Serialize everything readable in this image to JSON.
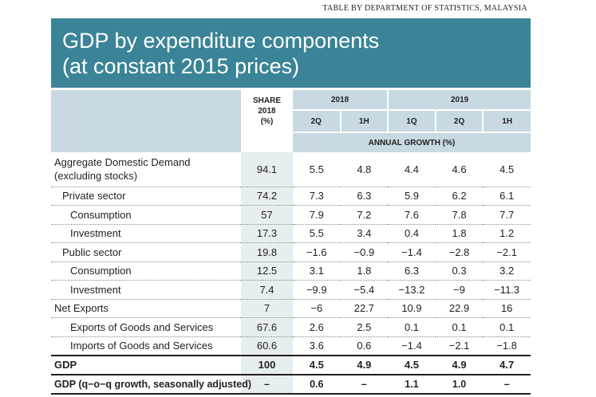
{
  "source": "TABLE BY DEPARTMENT OF STATISTICS, MALAYSIA",
  "title_line1": "GDP by expenditure components",
  "title_line2": "(at constant 2015 prices)",
  "header": {
    "share_l1": "SHARE",
    "share_l2": "2018",
    "share_l3": "(%)",
    "year_2018": "2018",
    "year_2019": "2019",
    "periods": [
      "2Q",
      "1H",
      "1Q",
      "2Q",
      "1H"
    ],
    "annual_growth": "ANNUAL GROWTH (%)"
  },
  "rows": [
    {
      "label1": "Aggregate Domestic Demand",
      "label2": "(excluding stocks)",
      "share": "94.1",
      "values": [
        "5.5",
        "4.8",
        "4.4",
        "4.6",
        "4.5"
      ]
    },
    {
      "label": "Private sector",
      "share": "74.2",
      "values": [
        "7.3",
        "6.3",
        "5.9",
        "6.2",
        "6.1"
      ]
    },
    {
      "label": "Consumption",
      "share": "57",
      "values": [
        "7.9",
        "7.2",
        "7.6",
        "7.8",
        "7.7"
      ]
    },
    {
      "label": "Investment",
      "share": "17.3",
      "values": [
        "5.5",
        "3.4",
        "0.4",
        "1.8",
        "1.2"
      ]
    },
    {
      "label": "Public sector",
      "share": "19.8",
      "values": [
        "−1.6",
        "−0.9",
        "−1.4",
        "−2.8",
        "−2.1"
      ]
    },
    {
      "label": "Consumption",
      "share": "12.5",
      "values": [
        "3.1",
        "1.8",
        "6.3",
        "0.3",
        "3.2"
      ]
    },
    {
      "label": "Investment",
      "share": "7.4",
      "values": [
        "−9.9",
        "−5.4",
        "−13.2",
        "−9",
        "−11.3"
      ]
    },
    {
      "label": "Net Exports",
      "share": "7",
      "values": [
        "−6",
        "22.7",
        "10.9",
        "22.9",
        "16"
      ]
    },
    {
      "label": "Exports of Goods and Services",
      "share": "67.6",
      "values": [
        "2.6",
        "2.5",
        "0.1",
        "0.1",
        "0.1"
      ]
    },
    {
      "label": "Imports of Goods and Services",
      "share": "60.6",
      "values": [
        "3.6",
        "0.6",
        "−1.4",
        "−2.1",
        "−1.8"
      ]
    },
    {
      "label": "GDP",
      "share": "100",
      "values": [
        "4.5",
        "4.9",
        "4.5",
        "4.9",
        "4.7"
      ]
    },
    {
      "label": "GDP (q−o−q growth, seasonally adjusted)",
      "share": "–",
      "values": [
        "0.6",
        "–",
        "1.1",
        "1.0",
        "–"
      ]
    }
  ],
  "colors": {
    "title_bg": "#3b8497",
    "header_bg": "#c8d9e1",
    "share_bg": "#e6eef2"
  }
}
